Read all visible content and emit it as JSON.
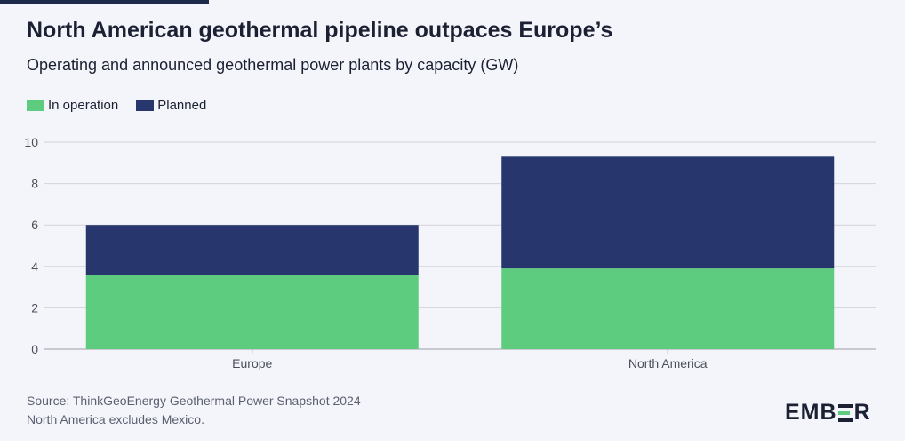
{
  "title": "North American geothermal pipeline outpaces Europe’s",
  "subtitle": "Operating and announced geothermal power plants by capacity (GW)",
  "legend": [
    {
      "label": "In operation",
      "color": "#5ecc7f"
    },
    {
      "label": "Planned",
      "color": "#27376d"
    }
  ],
  "source_line1": "Source: ThinkGeoEnergy Geothermal Power Snapshot 2024",
  "source_line2": "North America excludes Mexico.",
  "logo_text": "EMBER",
  "colors": {
    "grid": "#d2d4da",
    "axis_text": "#4a4f5c",
    "background": "#f4f5fa"
  },
  "chart_data": {
    "type": "bar",
    "stacked": true,
    "title": "North American geothermal pipeline outpaces Europe’s",
    "subtitle": "Operating and announced geothermal power plants by capacity (GW)",
    "xlabel": "",
    "ylabel": "",
    "categories": [
      "Europe",
      "North America"
    ],
    "series": [
      {
        "name": "In operation",
        "color": "#5ecc7f",
        "values": [
          3.6,
          3.9
        ]
      },
      {
        "name": "Planned",
        "color": "#27376d",
        "values": [
          2.4,
          5.4
        ]
      }
    ],
    "ylim": [
      0,
      10
    ],
    "yticks": [
      0,
      2,
      4,
      6,
      8,
      10
    ],
    "grid": true,
    "legend_position": "top-left"
  }
}
